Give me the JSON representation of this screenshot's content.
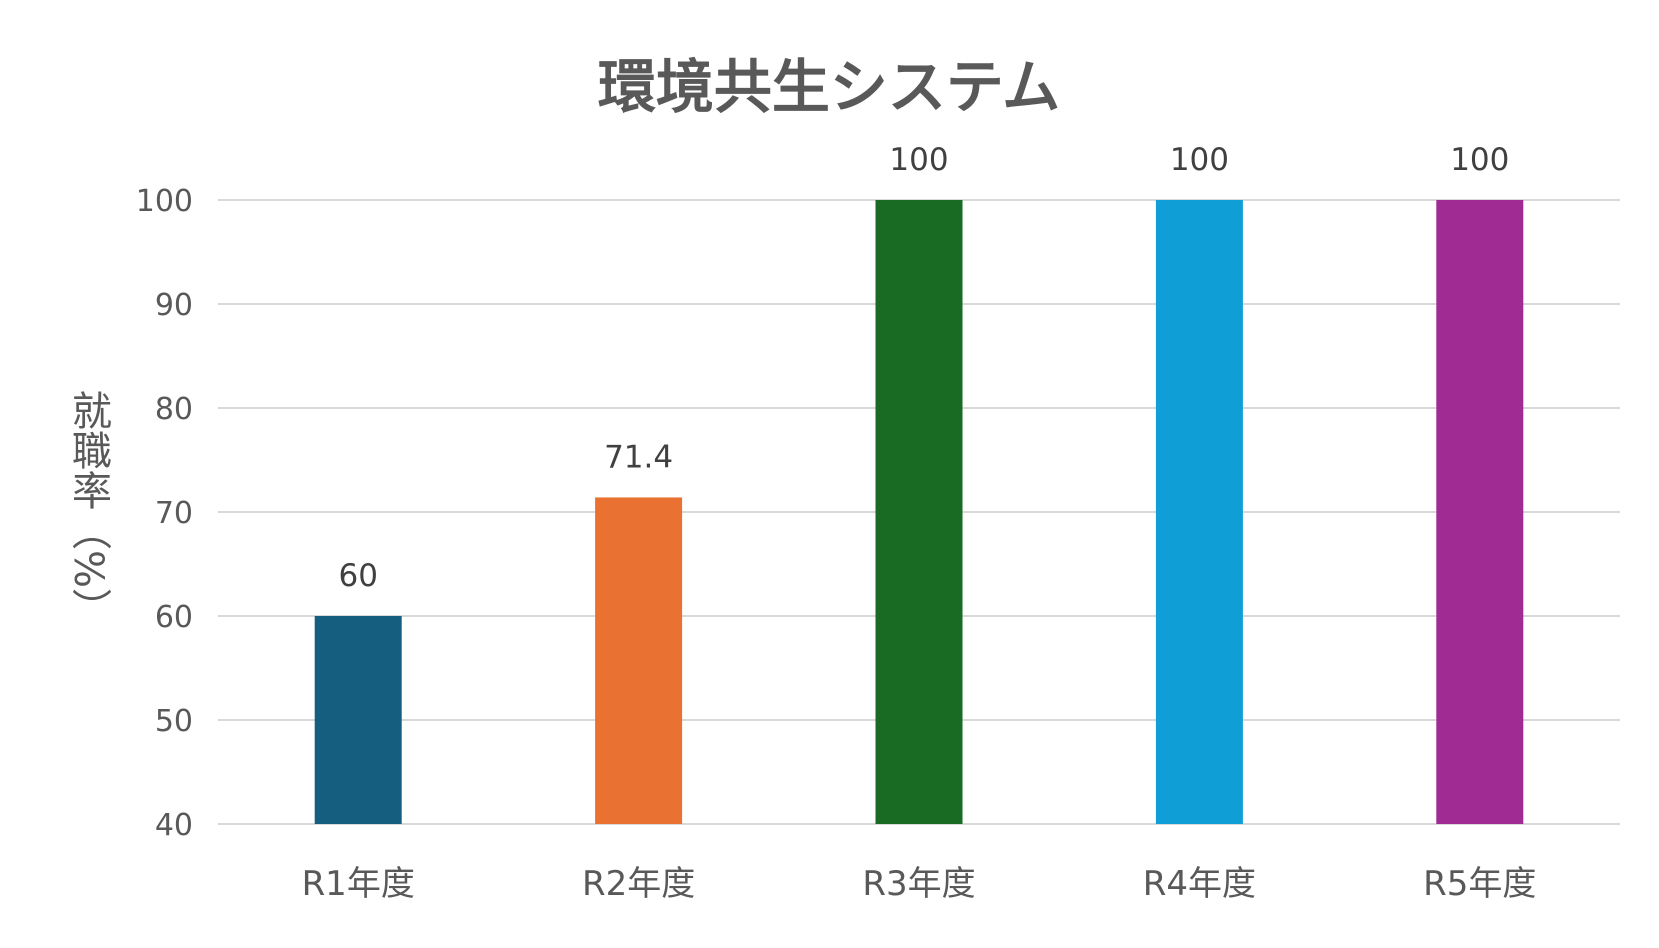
{
  "chart_data": {
    "type": "bar",
    "title": "環境共生システム",
    "xlabel": "",
    "ylabel": "就職率（%）",
    "categories": [
      "R1年度",
      "R2年度",
      "R3年度",
      "R4年度",
      "R5年度"
    ],
    "values": [
      60,
      71.4,
      100,
      100,
      100
    ],
    "data_labels": [
      "60",
      "71.4",
      "100",
      "100",
      "100"
    ],
    "colors": [
      "#155e80",
      "#e97132",
      "#196b24",
      "#0f9ed5",
      "#a02b93"
    ],
    "ylim": [
      40,
      100
    ],
    "yticks": [
      40,
      50,
      60,
      70,
      80,
      90,
      100
    ],
    "grid": true,
    "legend": "none"
  }
}
